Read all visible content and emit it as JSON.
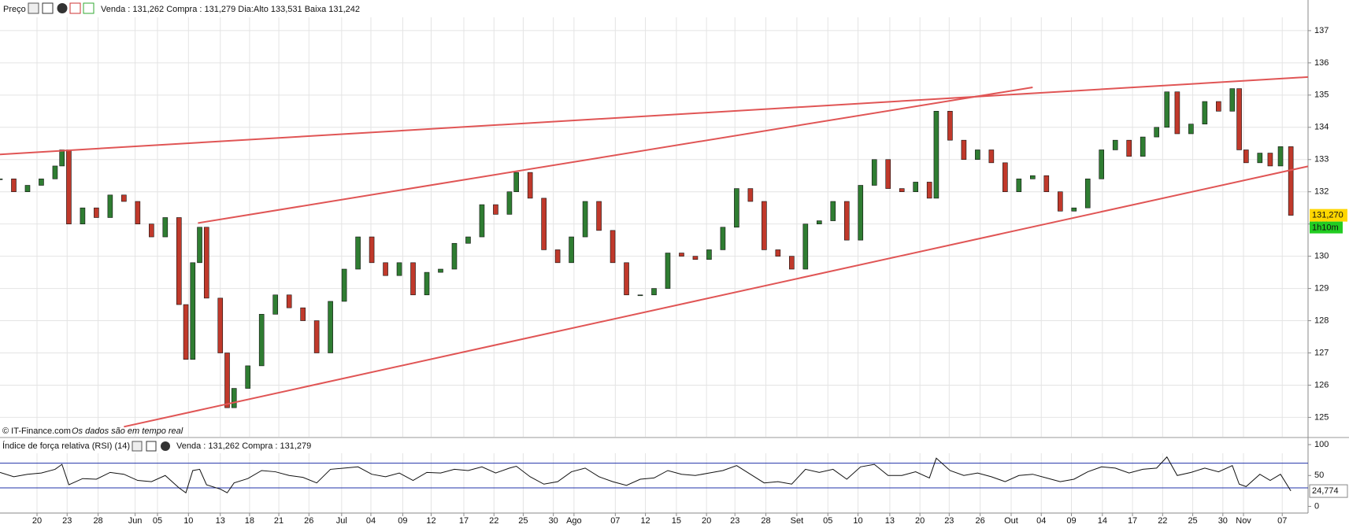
{
  "chart_data": {
    "type": "candlestick",
    "panel_title": "Preço",
    "quote": "Venda : 131,262 Compra : 131,279 Dia:Alto 133,531 Baixa 131,242",
    "source": "© IT-Finance.com",
    "note": "Os dados são em tempo real",
    "x": [
      0,
      4,
      8,
      12,
      16,
      18,
      20,
      24,
      28,
      32,
      36,
      40,
      44,
      48,
      52,
      54,
      56,
      58,
      60,
      64,
      66,
      68,
      72,
      76,
      80,
      84,
      88,
      92,
      96,
      100,
      104,
      108,
      112,
      116,
      120,
      124,
      128,
      132,
      136,
      140,
      144,
      148,
      150,
      154,
      158,
      162,
      166,
      170,
      174,
      178,
      182,
      186,
      190,
      194,
      198,
      202,
      206,
      210,
      214,
      218,
      222,
      226,
      230,
      234,
      238,
      242,
      246,
      250,
      254,
      258,
      262,
      266,
      270,
      272,
      276,
      280,
      284,
      288,
      292,
      296,
      300,
      304,
      308,
      312,
      316,
      320,
      324,
      328,
      332,
      336,
      339,
      342,
      346,
      350,
      354,
      358,
      360,
      362,
      366,
      369,
      372,
      375
    ],
    "close": [
      132.4,
      132.0,
      132.2,
      132.4,
      132.8,
      133.3,
      131.0,
      131.5,
      131.2,
      131.9,
      131.7,
      131.0,
      130.6,
      131.2,
      128.5,
      126.8,
      129.8,
      130.9,
      128.7,
      127.0,
      125.3,
      125.9,
      126.6,
      128.2,
      128.8,
      128.4,
      128.0,
      127.0,
      128.6,
      129.6,
      130.6,
      129.8,
      129.4,
      129.8,
      128.8,
      129.5,
      129.6,
      130.4,
      130.6,
      131.6,
      131.3,
      132.0,
      132.6,
      131.8,
      130.2,
      129.8,
      130.6,
      131.7,
      130.8,
      129.8,
      128.8,
      128.8,
      129.0,
      130.1,
      130.0,
      129.9,
      130.2,
      130.9,
      132.1,
      131.7,
      130.2,
      130.0,
      129.6,
      131.0,
      131.1,
      131.7,
      130.5,
      132.2,
      133.0,
      132.1,
      132.0,
      132.3,
      131.8,
      134.5,
      133.6,
      133.0,
      133.3,
      132.9,
      132.0,
      132.4,
      132.5,
      132.0,
      131.4,
      131.5,
      132.4,
      133.3,
      133.6,
      133.1,
      133.7,
      134.0,
      135.1,
      133.8,
      134.1,
      134.8,
      134.5,
      135.2,
      133.3,
      132.9,
      133.2,
      132.8,
      133.4,
      131.27
    ],
    "color_up": "#2f7d32",
    "color_down": "#c0392b",
    "xlim": [
      0,
      380
    ],
    "xticks": [
      {
        "value": 10.75,
        "label": "20"
      },
      {
        "value": 19.5,
        "label": "23"
      },
      {
        "value": 28.5,
        "label": "28"
      },
      {
        "value": 39.25,
        "label": "Jun"
      },
      {
        "value": 45.75,
        "label": "05"
      },
      {
        "value": 54.75,
        "label": "10"
      },
      {
        "value": 64,
        "label": "13"
      },
      {
        "value": 72.5,
        "label": "18"
      },
      {
        "value": 81,
        "label": "21"
      },
      {
        "value": 89.75,
        "label": "26"
      },
      {
        "value": 99.25,
        "label": "Jul"
      },
      {
        "value": 107.75,
        "label": "04"
      },
      {
        "value": 117,
        "label": "09"
      },
      {
        "value": 125.25,
        "label": "12"
      },
      {
        "value": 134.75,
        "label": "17"
      },
      {
        "value": 143.5,
        "label": "22"
      },
      {
        "value": 152,
        "label": "25"
      },
      {
        "value": 160.75,
        "label": "30"
      },
      {
        "value": 166.75,
        "label": "Ago"
      },
      {
        "value": 178.75,
        "label": "07"
      },
      {
        "value": 187.5,
        "label": "12"
      },
      {
        "value": 196.5,
        "label": "15"
      },
      {
        "value": 205.25,
        "label": "20"
      },
      {
        "value": 213.5,
        "label": "23"
      },
      {
        "value": 222.5,
        "label": "28"
      },
      {
        "value": 231.5,
        "label": "Set"
      },
      {
        "value": 240.5,
        "label": "05"
      },
      {
        "value": 249.25,
        "label": "10"
      },
      {
        "value": 258.5,
        "label": "13"
      },
      {
        "value": 267.25,
        "label": "20"
      },
      {
        "value": 275.75,
        "label": "23"
      },
      {
        "value": 284.75,
        "label": "26"
      },
      {
        "value": 293.75,
        "label": "Out"
      },
      {
        "value": 302.5,
        "label": "04"
      },
      {
        "value": 311.25,
        "label": "09"
      },
      {
        "value": 320.25,
        "label": "14"
      },
      {
        "value": 329,
        "label": "17"
      },
      {
        "value": 337.75,
        "label": "22"
      },
      {
        "value": 346.5,
        "label": "25"
      },
      {
        "value": 355.25,
        "label": "30"
      },
      {
        "value": 361.25,
        "label": "Nov"
      },
      {
        "value": 372.5,
        "label": "07"
      }
    ],
    "ylim": [
      124.4,
      137.95
    ],
    "yticks": [
      125,
      126,
      127,
      128,
      129,
      130,
      131,
      132,
      133,
      134,
      135,
      136,
      137
    ],
    "grid": true,
    "trendline_color": "#e05555",
    "trendlines": [
      {
        "x": [
          0,
          380
        ],
        "y": [
          133.16,
          135.56
        ]
      },
      {
        "x": [
          57.5,
          300
        ],
        "y": [
          131.03,
          135.24
        ]
      },
      {
        "x": [
          36,
          380
        ],
        "y": [
          124.71,
          132.79
        ]
      }
    ],
    "last_price": {
      "value": 131.27,
      "label": "131,270"
    },
    "timer": "1h10m",
    "rsi": {
      "type": "line",
      "title": "Índice de força relativa (RSI) (14)",
      "quote": "Venda : 131,262 Compra : 131,279",
      "values": [
        55,
        48,
        52,
        54,
        60,
        68,
        35,
        45,
        44,
        55,
        52,
        42,
        40,
        50,
        30,
        22,
        58,
        60,
        35,
        28,
        22,
        38,
        45,
        58,
        56,
        50,
        47,
        38,
        60,
        62,
        64,
        52,
        48,
        54,
        42,
        55,
        54,
        60,
        58,
        64,
        54,
        62,
        65,
        48,
        36,
        40,
        56,
        62,
        48,
        40,
        34,
        44,
        46,
        58,
        52,
        50,
        54,
        58,
        66,
        52,
        38,
        40,
        36,
        60,
        55,
        60,
        44,
        64,
        68,
        50,
        50,
        56,
        46,
        78,
        58,
        50,
        54,
        48,
        40,
        50,
        52,
        46,
        40,
        44,
        56,
        64,
        62,
        54,
        60,
        62,
        80,
        50,
        55,
        62,
        56,
        66,
        36,
        32,
        52,
        42,
        52,
        25
      ],
      "color": "#111111",
      "ylim": [
        -10.8,
        106.4
      ],
      "yticks": [
        0,
        50,
        100
      ],
      "bands": [
        30,
        70
      ],
      "band_color": "#2233aa",
      "last": {
        "value": 24.774,
        "label": "24,774"
      }
    }
  }
}
